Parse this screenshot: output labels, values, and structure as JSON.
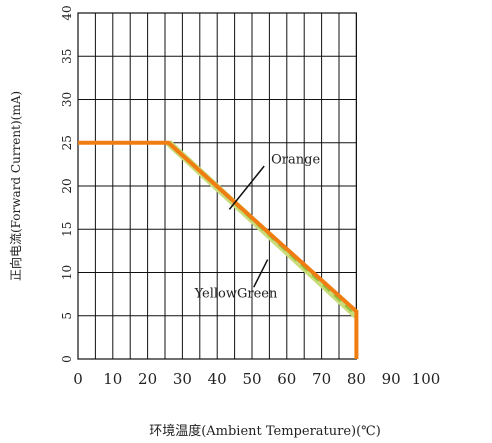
{
  "chart_data": {
    "type": "line",
    "xlabel": "环境温度(Ambient Temperature)(℃)",
    "ylabel": "正向电流(Forward Current)(mA)",
    "xlim": [
      0,
      100
    ],
    "ylim": [
      0,
      40
    ],
    "xticks": [
      0,
      10,
      20,
      30,
      40,
      50,
      60,
      70,
      80,
      90,
      100
    ],
    "yticks": [
      0,
      5,
      10,
      15,
      20,
      25,
      30,
      35,
      40
    ],
    "grid": true,
    "colors": {
      "grid": "#111111",
      "orange": "#f07d12",
      "yellowgreen": "#c8dc7a"
    },
    "series": [
      {
        "name": "Orange",
        "x": [
          0,
          26,
          80,
          80
        ],
        "y": [
          25,
          25,
          5.5,
          0
        ]
      },
      {
        "name": "YellowGreen",
        "x": [
          26,
          80
        ],
        "y": [
          25,
          5
        ]
      }
    ],
    "annotations": [
      {
        "text": "Orange",
        "series": "Orange"
      },
      {
        "text": "YellowGreen",
        "series": "YellowGreen"
      }
    ]
  }
}
